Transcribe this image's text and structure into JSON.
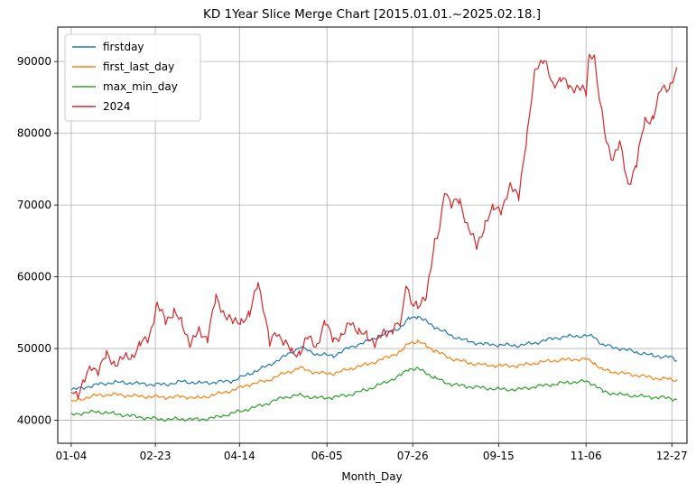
{
  "chart_data": {
    "type": "line",
    "title": "KD 1Year Slice Merge Chart [2015.01.01.~2025.02.18.]",
    "xlabel": "Month_Day",
    "ylabel": "",
    "x_tick_labels": [
      "01-04",
      "02-23",
      "04-14",
      "06-05",
      "07-26",
      "09-15",
      "11-06",
      "12-27"
    ],
    "x_tick_days": [
      4,
      54,
      104,
      156,
      207,
      258,
      310,
      361
    ],
    "xlim": [
      -4,
      370
    ],
    "y_tick_labels": [
      "40000",
      "50000",
      "60000",
      "70000",
      "80000",
      "90000"
    ],
    "y_ticks": [
      40000,
      50000,
      60000,
      70000,
      80000,
      90000
    ],
    "ylim": [
      36800,
      94800
    ],
    "grid": true,
    "legend_position": "top-left",
    "series": [
      {
        "name": "firstday",
        "color": "#1f77b4",
        "x": [
          4,
          10,
          20,
          30,
          40,
          50,
          60,
          70,
          80,
          90,
          100,
          110,
          120,
          130,
          140,
          150,
          160,
          170,
          180,
          190,
          200,
          205,
          210,
          215,
          220,
          230,
          240,
          250,
          260,
          270,
          280,
          290,
          300,
          310,
          315,
          320,
          330,
          340,
          350,
          360,
          364
        ],
        "y": [
          44200,
          44500,
          45000,
          45300,
          45200,
          45000,
          45000,
          45400,
          45200,
          45300,
          45500,
          46500,
          47500,
          48800,
          50200,
          49200,
          49000,
          50200,
          51000,
          52000,
          53000,
          54200,
          54500,
          53800,
          53000,
          51800,
          51000,
          50600,
          50500,
          50400,
          50800,
          51400,
          51700,
          51800,
          51600,
          50500,
          50000,
          49500,
          49000,
          48800,
          48300
        ]
      },
      {
        "name": "first_last_day",
        "color": "#ff7f0e",
        "x": [
          4,
          10,
          20,
          30,
          40,
          50,
          60,
          70,
          80,
          90,
          100,
          110,
          120,
          130,
          140,
          150,
          160,
          170,
          180,
          190,
          200,
          205,
          210,
          215,
          220,
          230,
          240,
          250,
          260,
          270,
          280,
          290,
          300,
          310,
          315,
          320,
          330,
          340,
          350,
          360,
          364
        ],
        "y": [
          42500,
          43000,
          43500,
          43600,
          43400,
          43300,
          43200,
          43300,
          43100,
          43600,
          44200,
          45000,
          45500,
          46500,
          47300,
          46600,
          46500,
          47200,
          47800,
          48600,
          49600,
          50800,
          51000,
          50400,
          49700,
          48600,
          48000,
          47700,
          47600,
          47600,
          48000,
          48300,
          48500,
          48500,
          48000,
          47000,
          46600,
          46300,
          45900,
          45700,
          45600
        ]
      },
      {
        "name": "max_min_day",
        "color": "#2ca02c",
        "x": [
          4,
          10,
          20,
          30,
          40,
          50,
          60,
          70,
          80,
          90,
          100,
          110,
          120,
          130,
          140,
          150,
          160,
          170,
          180,
          190,
          200,
          205,
          210,
          215,
          220,
          230,
          240,
          250,
          260,
          270,
          280,
          290,
          300,
          310,
          315,
          320,
          330,
          340,
          350,
          360,
          364
        ],
        "y": [
          40800,
          41000,
          41200,
          40900,
          40600,
          40300,
          40100,
          40200,
          40100,
          40400,
          41000,
          41600,
          42300,
          43200,
          43500,
          43100,
          43200,
          43600,
          44300,
          45200,
          46300,
          47200,
          47200,
          46600,
          45900,
          45000,
          44700,
          44500,
          44300,
          44300,
          44700,
          45000,
          45300,
          45400,
          45000,
          44000,
          43600,
          43400,
          43200,
          43100,
          42900
        ]
      },
      {
        "name": "2024",
        "color": "#d62728",
        "x": [
          4,
          8,
          12,
          16,
          20,
          25,
          30,
          35,
          40,
          45,
          50,
          55,
          60,
          65,
          70,
          75,
          80,
          85,
          90,
          95,
          100,
          105,
          110,
          115,
          118,
          122,
          126,
          130,
          135,
          140,
          145,
          150,
          155,
          160,
          165,
          170,
          175,
          180,
          185,
          190,
          195,
          200,
          203,
          206,
          210,
          215,
          220,
          223,
          226,
          230,
          235,
          240,
          245,
          250,
          255,
          260,
          265,
          270,
          275,
          280,
          285,
          290,
          295,
          300,
          305,
          310,
          312,
          315,
          318,
          322,
          326,
          330,
          335,
          340,
          345,
          350,
          355,
          360,
          364
        ],
        "y": [
          44200,
          43800,
          45500,
          47500,
          47000,
          49000,
          48000,
          48500,
          49000,
          50500,
          51500,
          56000,
          54000,
          55000,
          53500,
          50500,
          52500,
          51500,
          57000,
          55000,
          53500,
          54000,
          54500,
          59500,
          56000,
          50500,
          52500,
          51000,
          49500,
          49500,
          51500,
          50500,
          53500,
          51500,
          51500,
          54000,
          52000,
          52000,
          50500,
          52500,
          52500,
          53500,
          59500,
          56500,
          55500,
          57500,
          64500,
          66500,
          72500,
          70000,
          70500,
          67000,
          64000,
          67500,
          69500,
          69500,
          72500,
          71500,
          79500,
          89500,
          90000,
          87000,
          87500,
          86500,
          86500,
          85500,
          91500,
          90500,
          84500,
          79000,
          76500,
          78500,
          73000,
          75500,
          82000,
          82000,
          86500,
          86500,
          88500
        ]
      }
    ]
  }
}
